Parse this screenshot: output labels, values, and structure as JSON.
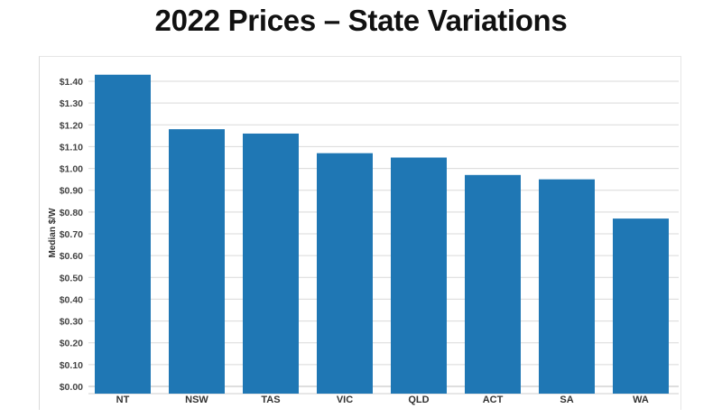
{
  "chart_data": {
    "type": "bar",
    "title": "2022 Prices – State Variations",
    "xlabel": "",
    "ylabel": "Median $/W",
    "categories": [
      "NT",
      "NSW",
      "TAS",
      "VIC",
      "QLD",
      "ACT",
      "SA",
      "WA"
    ],
    "values": [
      1.43,
      1.18,
      1.16,
      1.07,
      1.05,
      0.97,
      0.95,
      0.77
    ],
    "ylim": [
      0,
      1.4
    ],
    "yticks": [
      "$0.00",
      "$0.10",
      "$0.20",
      "$0.30",
      "$0.40",
      "$0.50",
      "$0.60",
      "$0.70",
      "$0.80",
      "$0.90",
      "$1.00",
      "$1.10",
      "$1.20",
      "$1.30",
      "$1.40"
    ],
    "grid": true,
    "legend": "none",
    "bar_color": "#1f77b4"
  }
}
